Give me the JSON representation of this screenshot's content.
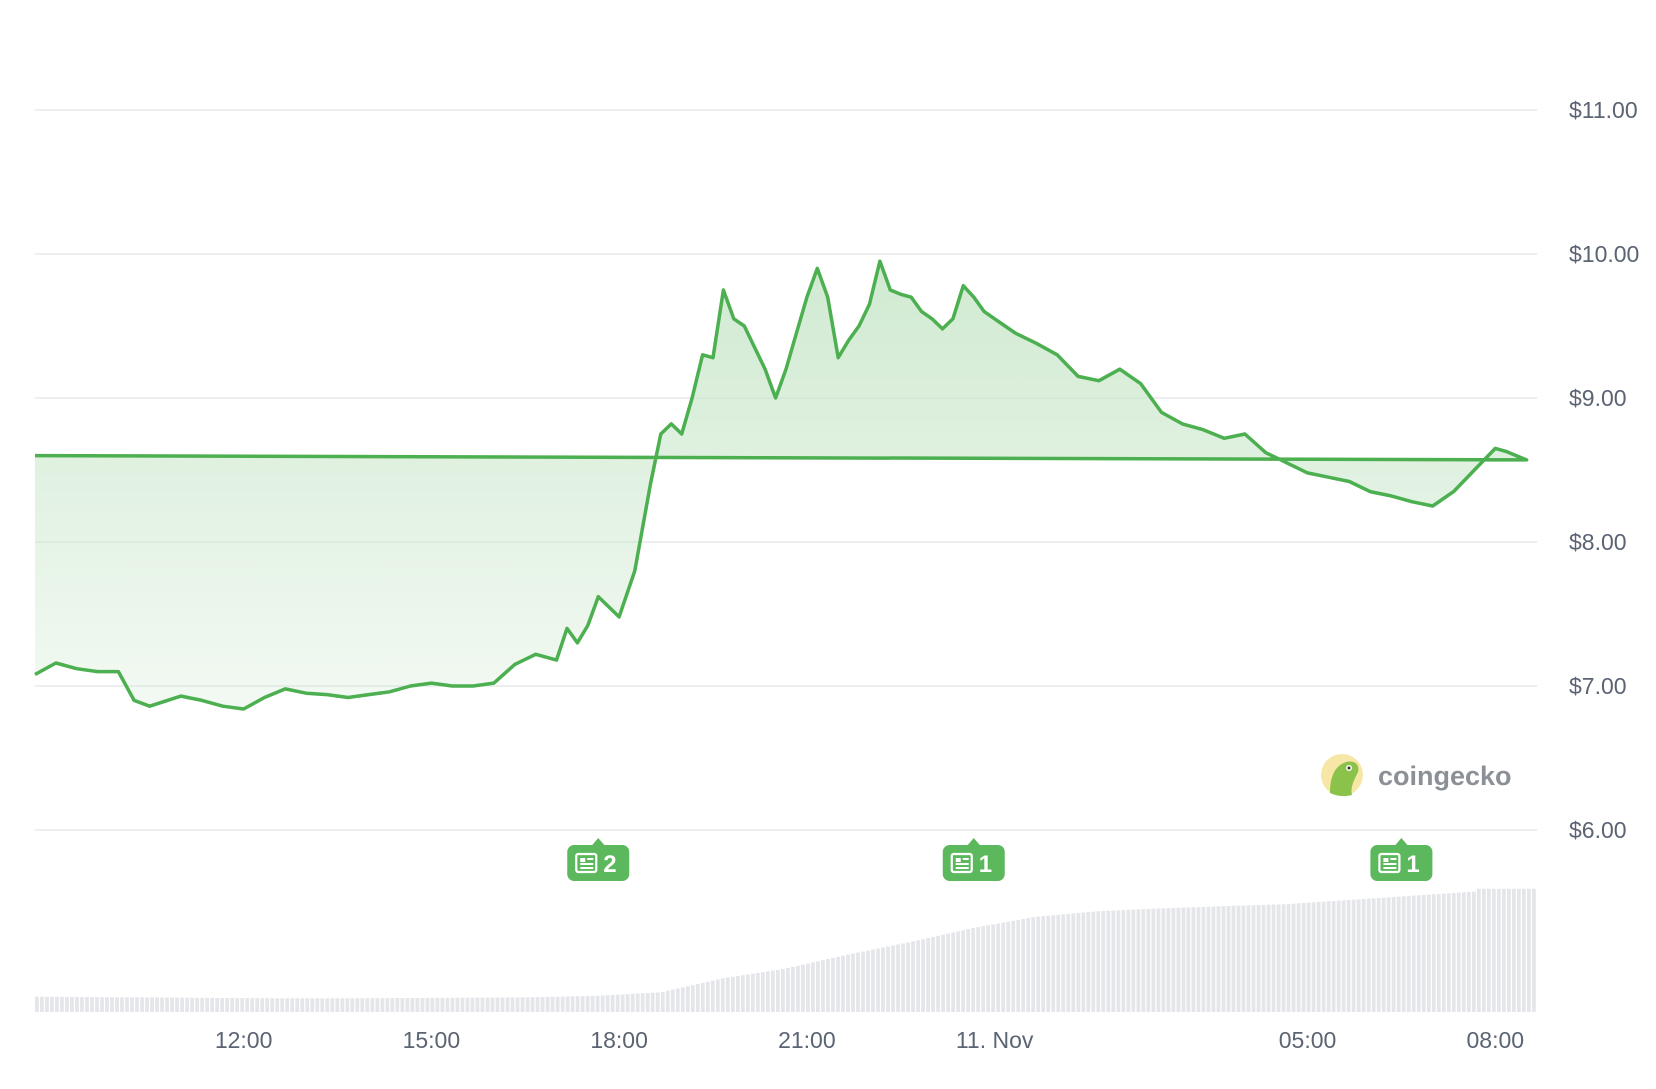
{
  "colors": {
    "line": "#4caf50",
    "fill_top": "#c8e6c9",
    "badge": "#5cb85c",
    "grid": "#e6e8ec",
    "volume": "#e4e6ea",
    "tick_text": "#5b6472"
  },
  "brand": {
    "name": "coingecko",
    "icon": "gecko-logo-icon"
  },
  "news_badges": [
    {
      "count": "2",
      "x": "17:40",
      "icon": "newspaper-icon"
    },
    {
      "count": "1",
      "x": "23:40",
      "icon": "newspaper-icon"
    },
    {
      "count": "1",
      "x": "06:30",
      "icon": "newspaper-icon"
    }
  ],
  "chart_data": {
    "type": "area",
    "title": "",
    "xlabel": "",
    "ylabel": "",
    "ylim": [
      6.0,
      11.0
    ],
    "y_ticks": [
      "$6.00",
      "$7.00",
      "$8.00",
      "$9.00",
      "$10.00",
      "$11.00"
    ],
    "x_ticks": [
      "12:00",
      "15:00",
      "18:00",
      "21:00",
      "11. Nov",
      "05:00",
      "08:00"
    ],
    "grid": true,
    "legend": "none",
    "series": [
      {
        "x": [
          "08:40",
          "09:00",
          "09:20",
          "09:40",
          "10:00",
          "10:15",
          "10:30",
          "11:00",
          "11:20",
          "11:40",
          "12:00",
          "12:20",
          "12:40",
          "13:00",
          "13:20",
          "13:40",
          "14:00",
          "14:20",
          "14:40",
          "15:00",
          "15:20",
          "15:40",
          "16:00",
          "16:20",
          "16:40",
          "17:00",
          "17:10",
          "17:20",
          "17:30",
          "17:40",
          "17:50",
          "18:00",
          "18:15",
          "18:30",
          "18:40",
          "18:50",
          "19:00",
          "19:10",
          "19:20",
          "19:30",
          "19:40",
          "19:50",
          "20:00",
          "20:10",
          "20:20",
          "20:30",
          "20:40",
          "20:50",
          "21:00",
          "21:10",
          "21:20",
          "21:30",
          "21:40",
          "21:50",
          "22:00",
          "22:10",
          "22:20",
          "22:30",
          "22:40",
          "22:50",
          "23:00",
          "23:10",
          "23:20",
          "23:30",
          "23:40",
          "23:50",
          "00:00",
          "00:10",
          "00:20",
          "00:40",
          "01:00",
          "01:20",
          "01:40",
          "02:00",
          "02:20",
          "02:40",
          "03:00",
          "03:20",
          "03:40",
          "04:00",
          "04:20",
          "04:40",
          "05:00",
          "05:20",
          "05:40",
          "06:00",
          "06:20",
          "06:40",
          "07:00",
          "07:20",
          "07:40",
          "08:00",
          "08:10",
          "08:20",
          "08:30",
          "08:40"
        ],
        "y": [
          7.08,
          7.16,
          7.12,
          7.1,
          7.1,
          6.9,
          6.86,
          6.93,
          6.9,
          6.86,
          6.84,
          6.92,
          6.98,
          6.95,
          6.94,
          6.92,
          6.94,
          6.96,
          7.0,
          7.02,
          7.0,
          7.0,
          7.02,
          7.15,
          7.22,
          7.18,
          7.4,
          7.3,
          7.42,
          7.62,
          7.55,
          7.48,
          7.8,
          8.4,
          8.75,
          8.82,
          8.75,
          9.0,
          9.3,
          9.28,
          9.75,
          9.55,
          9.5,
          9.35,
          9.2,
          9.0,
          9.2,
          9.45,
          9.7,
          9.9,
          9.7,
          9.28,
          9.4,
          9.5,
          9.65,
          9.95,
          9.75,
          9.72,
          9.7,
          9.6,
          9.55,
          9.48,
          9.55,
          9.78,
          9.7,
          9.6,
          9.55,
          9.5,
          9.45,
          9.38,
          9.3,
          9.15,
          9.12,
          9.2,
          9.1,
          8.9,
          8.82,
          8.78,
          8.72,
          8.75,
          8.62,
          8.55,
          8.48,
          8.45,
          8.42,
          8.35,
          8.32,
          8.28,
          8.25,
          8.35,
          8.5,
          8.65,
          8.63,
          8.6,
          8.57,
          8.6
        ]
      },
      {
        "name": "",
        "type": "bar",
        "x": [
          "08:40",
          "09:40",
          "10:40",
          "11:40",
          "12:40",
          "13:40",
          "14:40",
          "15:40",
          "16:40",
          "17:40",
          "18:40",
          "19:40",
          "20:40",
          "21:40",
          "22:40",
          "23:40",
          "00:40",
          "01:40",
          "02:40",
          "03:40",
          "04:40",
          "05:40",
          "06:40",
          "07:40",
          "08:40"
        ],
        "y": [
          0.55,
          0.53,
          0.52,
          0.5,
          0.49,
          0.49,
          0.5,
          0.51,
          0.53,
          0.58,
          0.7,
          1.2,
          1.55,
          2.05,
          2.5,
          3.0,
          3.4,
          3.6,
          3.7,
          3.78,
          3.85,
          4.0,
          4.15,
          4.3,
          4.4
        ]
      }
    ]
  }
}
